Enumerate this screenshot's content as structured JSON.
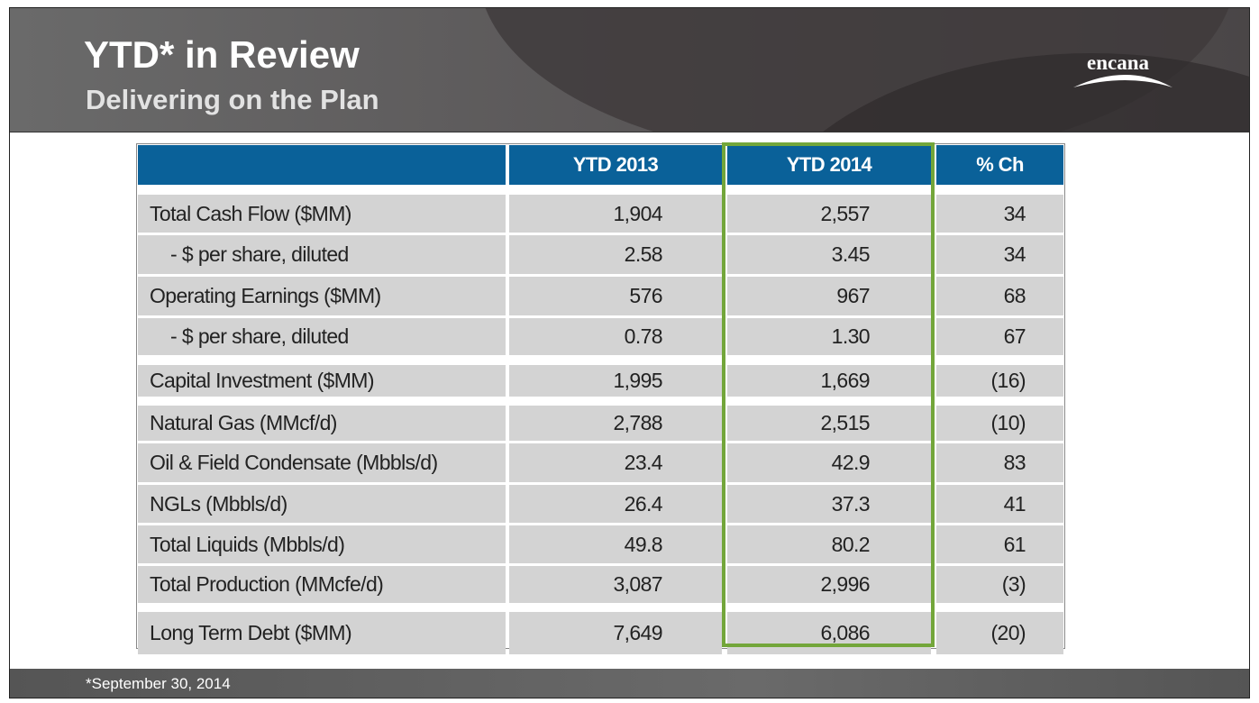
{
  "header": {
    "title": "YTD* in Review",
    "subtitle": "Delivering on the Plan",
    "logo": "encana"
  },
  "table": {
    "columns": [
      "",
      "YTD 2013",
      "YTD 2014",
      "% Ch"
    ],
    "rows": [
      [
        "Total Cash Flow ($MM)",
        "1,904",
        "2,557",
        "34"
      ],
      [
        "- $ per share, diluted",
        "2.58",
        "3.45",
        "34"
      ],
      [
        "Operating Earnings ($MM)",
        "576",
        "967",
        "68"
      ],
      [
        "- $ per share, diluted",
        "0.78",
        "1.30",
        "67"
      ],
      [
        "Capital Investment ($MM)",
        "1,995",
        "1,669",
        "(16)"
      ],
      [
        "Natural Gas (MMcf/d)",
        "2,788",
        "2,515",
        "(10)"
      ],
      [
        "Oil & Field Condensate (Mbbls/d)",
        "23.4",
        "42.9",
        "83"
      ],
      [
        "NGLs (Mbbls/d)",
        "26.4",
        "37.3",
        "41"
      ],
      [
        "Total Liquids (Mbbls/d)",
        "49.8",
        "80.2",
        "61"
      ],
      [
        "Total Production (MMcfe/d)",
        "3,087",
        "2,996",
        "(3)"
      ],
      [
        "Long Term Debt ($MM)",
        "7,649",
        "6,086",
        "(20)"
      ]
    ]
  },
  "footnote": "*September 30, 2014"
}
